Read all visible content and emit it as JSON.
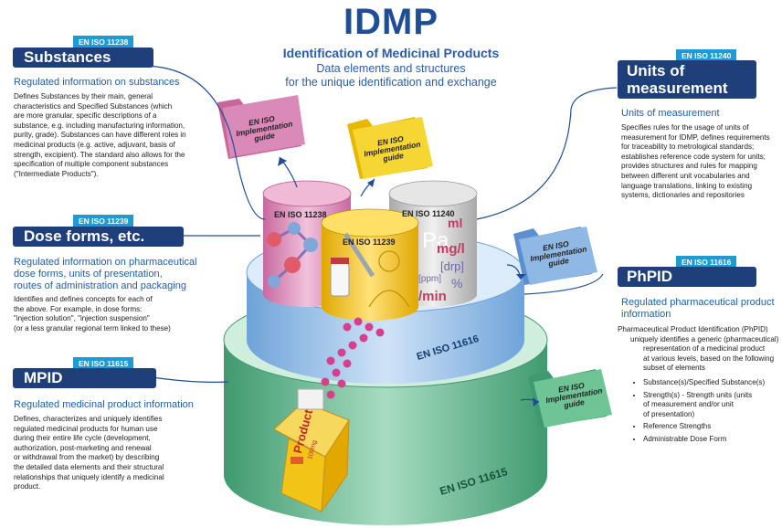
{
  "header": {
    "title": "IDMP",
    "subtitle": "Identification of Medicinal Products",
    "tagline_1": "Data elements and structures",
    "tagline_2": "for the unique identification and exchange"
  },
  "substances": {
    "iso": "EN ISO 11238",
    "title": "Substances",
    "subtitle": "Regulated information on substances",
    "body": [
      "Defines Substances by their main, general",
      "characteristics and Specified Substances (which",
      "are more granular, specific descriptions of a",
      "substance, e.g. including manufacturing information,",
      "purity, grade). Substances can have different roles in",
      "medicinal products (e.g. active, adjuvant, basis of",
      "strength, excipient). The standard also allows for the",
      "specification of multiple component substances",
      "(\"Intermediate Products\")."
    ]
  },
  "dose_forms": {
    "iso": "EN ISO 11239",
    "title": "Dose forms, etc.",
    "subtitle": [
      "Regulated information on pharmaceutical",
      "dose forms, units of presentation,",
      "routes of administration and packaging"
    ],
    "body": [
      "Identifies and defines concepts for each of",
      "the above. For example, in dose forms:",
      "\"injection solution\", \"injection suspension\"",
      "(or a less granular regional term linked to these)"
    ]
  },
  "mpid": {
    "iso": "EN ISO 11615",
    "title": "MPID",
    "subtitle": "Regulated medicinal product information",
    "body": [
      "Defines, characterizes and uniquely identifies",
      "regulated medicinal products for human use",
      "during their entire life cycle (development,",
      "authorization, post-marketing and renewal",
      "or withdrawal from the market) by describing",
      "the detailed data elements and their structural",
      "relationships that uniquely identify a medicinal",
      "product."
    ]
  },
  "units": {
    "iso": "EN ISO 11240",
    "title_1": "Units of",
    "title_2": "measurement",
    "subtitle": "Units of measurement",
    "body": [
      "Specifies rules for the usage of units of",
      "measurement for IDMP, defines requirements",
      "for traceability to metrological standards;",
      "establishes reference code system for units;",
      "provides structures and rules for mapping",
      "between different unit vocabularies and",
      "language translations, linking to existing",
      "systems, dictionaries and repositories"
    ]
  },
  "phpid": {
    "iso": "EN ISO 11616",
    "title": "PhPID",
    "subtitle": [
      "Regulated pharmaceutical product",
      "information"
    ],
    "body": [
      "Pharmaceutical Product Identification (PhPID)",
      "uniquely identifies a generic (pharmaceutical)",
      "representation of a medicinal product",
      "at various levels, based on the following",
      "subset of elements"
    ],
    "bullets": [
      "Substance(s)/Specified Substance(s)",
      "Strength(s) - Strength units (units\nof measurement and/or unit\nof presentation)",
      "Reference Strengths",
      "Administrable Dose Form"
    ]
  },
  "folders": {
    "line_1": "EN ISO",
    "line_2": "Implementation",
    "line_3": "guide"
  },
  "cylinders": {
    "c11238": "EN ISO 11238",
    "c11239": "EN ISO 11239",
    "c11240": "EN ISO 11240",
    "c11616": "EN ISO 11616",
    "c11615": "EN ISO 11615",
    "units_text": [
      "ml",
      "Pa",
      "mg/l",
      "[drp]",
      "[ppm]",
      "%",
      "/min"
    ],
    "product_text": "Product",
    "product_sub": "100mg"
  },
  "colors": {
    "dark_blue": "#1f3f7a",
    "tab_blue": "#1e9ad6",
    "title_blue": "#1f4e96",
    "pink_cyl": "#d98ab8",
    "yellow_cyl": "#f2c418",
    "grey_cyl": "#bdbdbd",
    "blue_ring": "#8fb9e4",
    "green_ring": "#5fb08a"
  }
}
